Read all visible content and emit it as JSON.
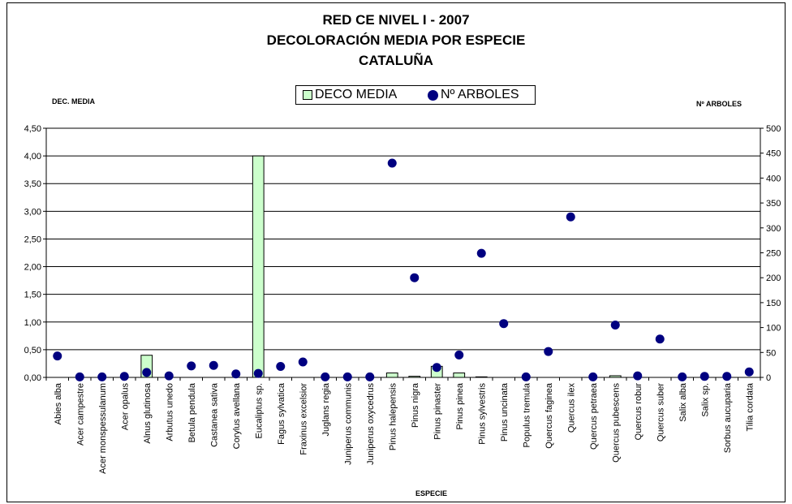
{
  "chart_data": {
    "type": "bar",
    "title": [
      "RED CE NIVEL I - 2007",
      "DECOLORACIÓN MEDIA POR ESPECIE",
      "CATALUÑA"
    ],
    "xlabel": "ESPECIE",
    "ylabel_left": "DEC. MEDIA",
    "ylabel_right": "Nº ARBOLES",
    "ylim_left": [
      0,
      4.5
    ],
    "ylim_right": [
      0,
      500
    ],
    "yticks_left": [
      "0,00",
      "0,50",
      "1,00",
      "1,50",
      "2,00",
      "2,50",
      "3,00",
      "3,50",
      "4,00",
      "4,50"
    ],
    "yticks_right": [
      "0",
      "50",
      "100",
      "150",
      "200",
      "250",
      "300",
      "350",
      "400",
      "450",
      "500"
    ],
    "grid": true,
    "legend_position": "top-center",
    "categories": [
      "Abies alba",
      "Acer campestre",
      "Acer monspessulanum",
      "Acer opalus",
      "Alnus glutinosa",
      "Arbutus unedo",
      "Betula pendula",
      "Castanea sativa",
      "Corylus avellana",
      "Eucaliptus sp.",
      "Fagus sylvatica",
      "Fraxinus excelsior",
      "Juglans regia",
      "Juniperus communis",
      "Juniperus oxycedrus",
      "Pinus halepensis",
      "Pinus nigra",
      "Pinus pinaster",
      "Pinus pinea",
      "Pinus sylvestris",
      "Pinus uncinata",
      "Populus tremula",
      "Quercus faginea",
      "Quercus ilex",
      "Quercus petraea",
      "Quercus pubescens",
      "Quercus robur",
      "Quercus suber",
      "Salix alba",
      "Salix sp.",
      "Sorbus aucuparia",
      "Tilia cordata"
    ],
    "series": [
      {
        "name": "DECO MEDIA",
        "type": "bar",
        "axis": "left",
        "color": "#ccffcc",
        "values": [
          0,
          0,
          0,
          0,
          0.4,
          0,
          0,
          0,
          0,
          4.0,
          0,
          0,
          0,
          0,
          0,
          0.08,
          0.02,
          0.2,
          0.08,
          0.01,
          0,
          0,
          0,
          0,
          0,
          0.03,
          0,
          0,
          0,
          0,
          0,
          0
        ]
      },
      {
        "name": "Nº ARBOLES",
        "type": "scatter",
        "axis": "right",
        "color": "#000080",
        "values": [
          43,
          1,
          1,
          2,
          10,
          3,
          23,
          24,
          7,
          8,
          22,
          31,
          1,
          1,
          1,
          430,
          200,
          20,
          45,
          249,
          108,
          1,
          52,
          322,
          1,
          105,
          3,
          77,
          1,
          2,
          2,
          11
        ]
      }
    ]
  }
}
